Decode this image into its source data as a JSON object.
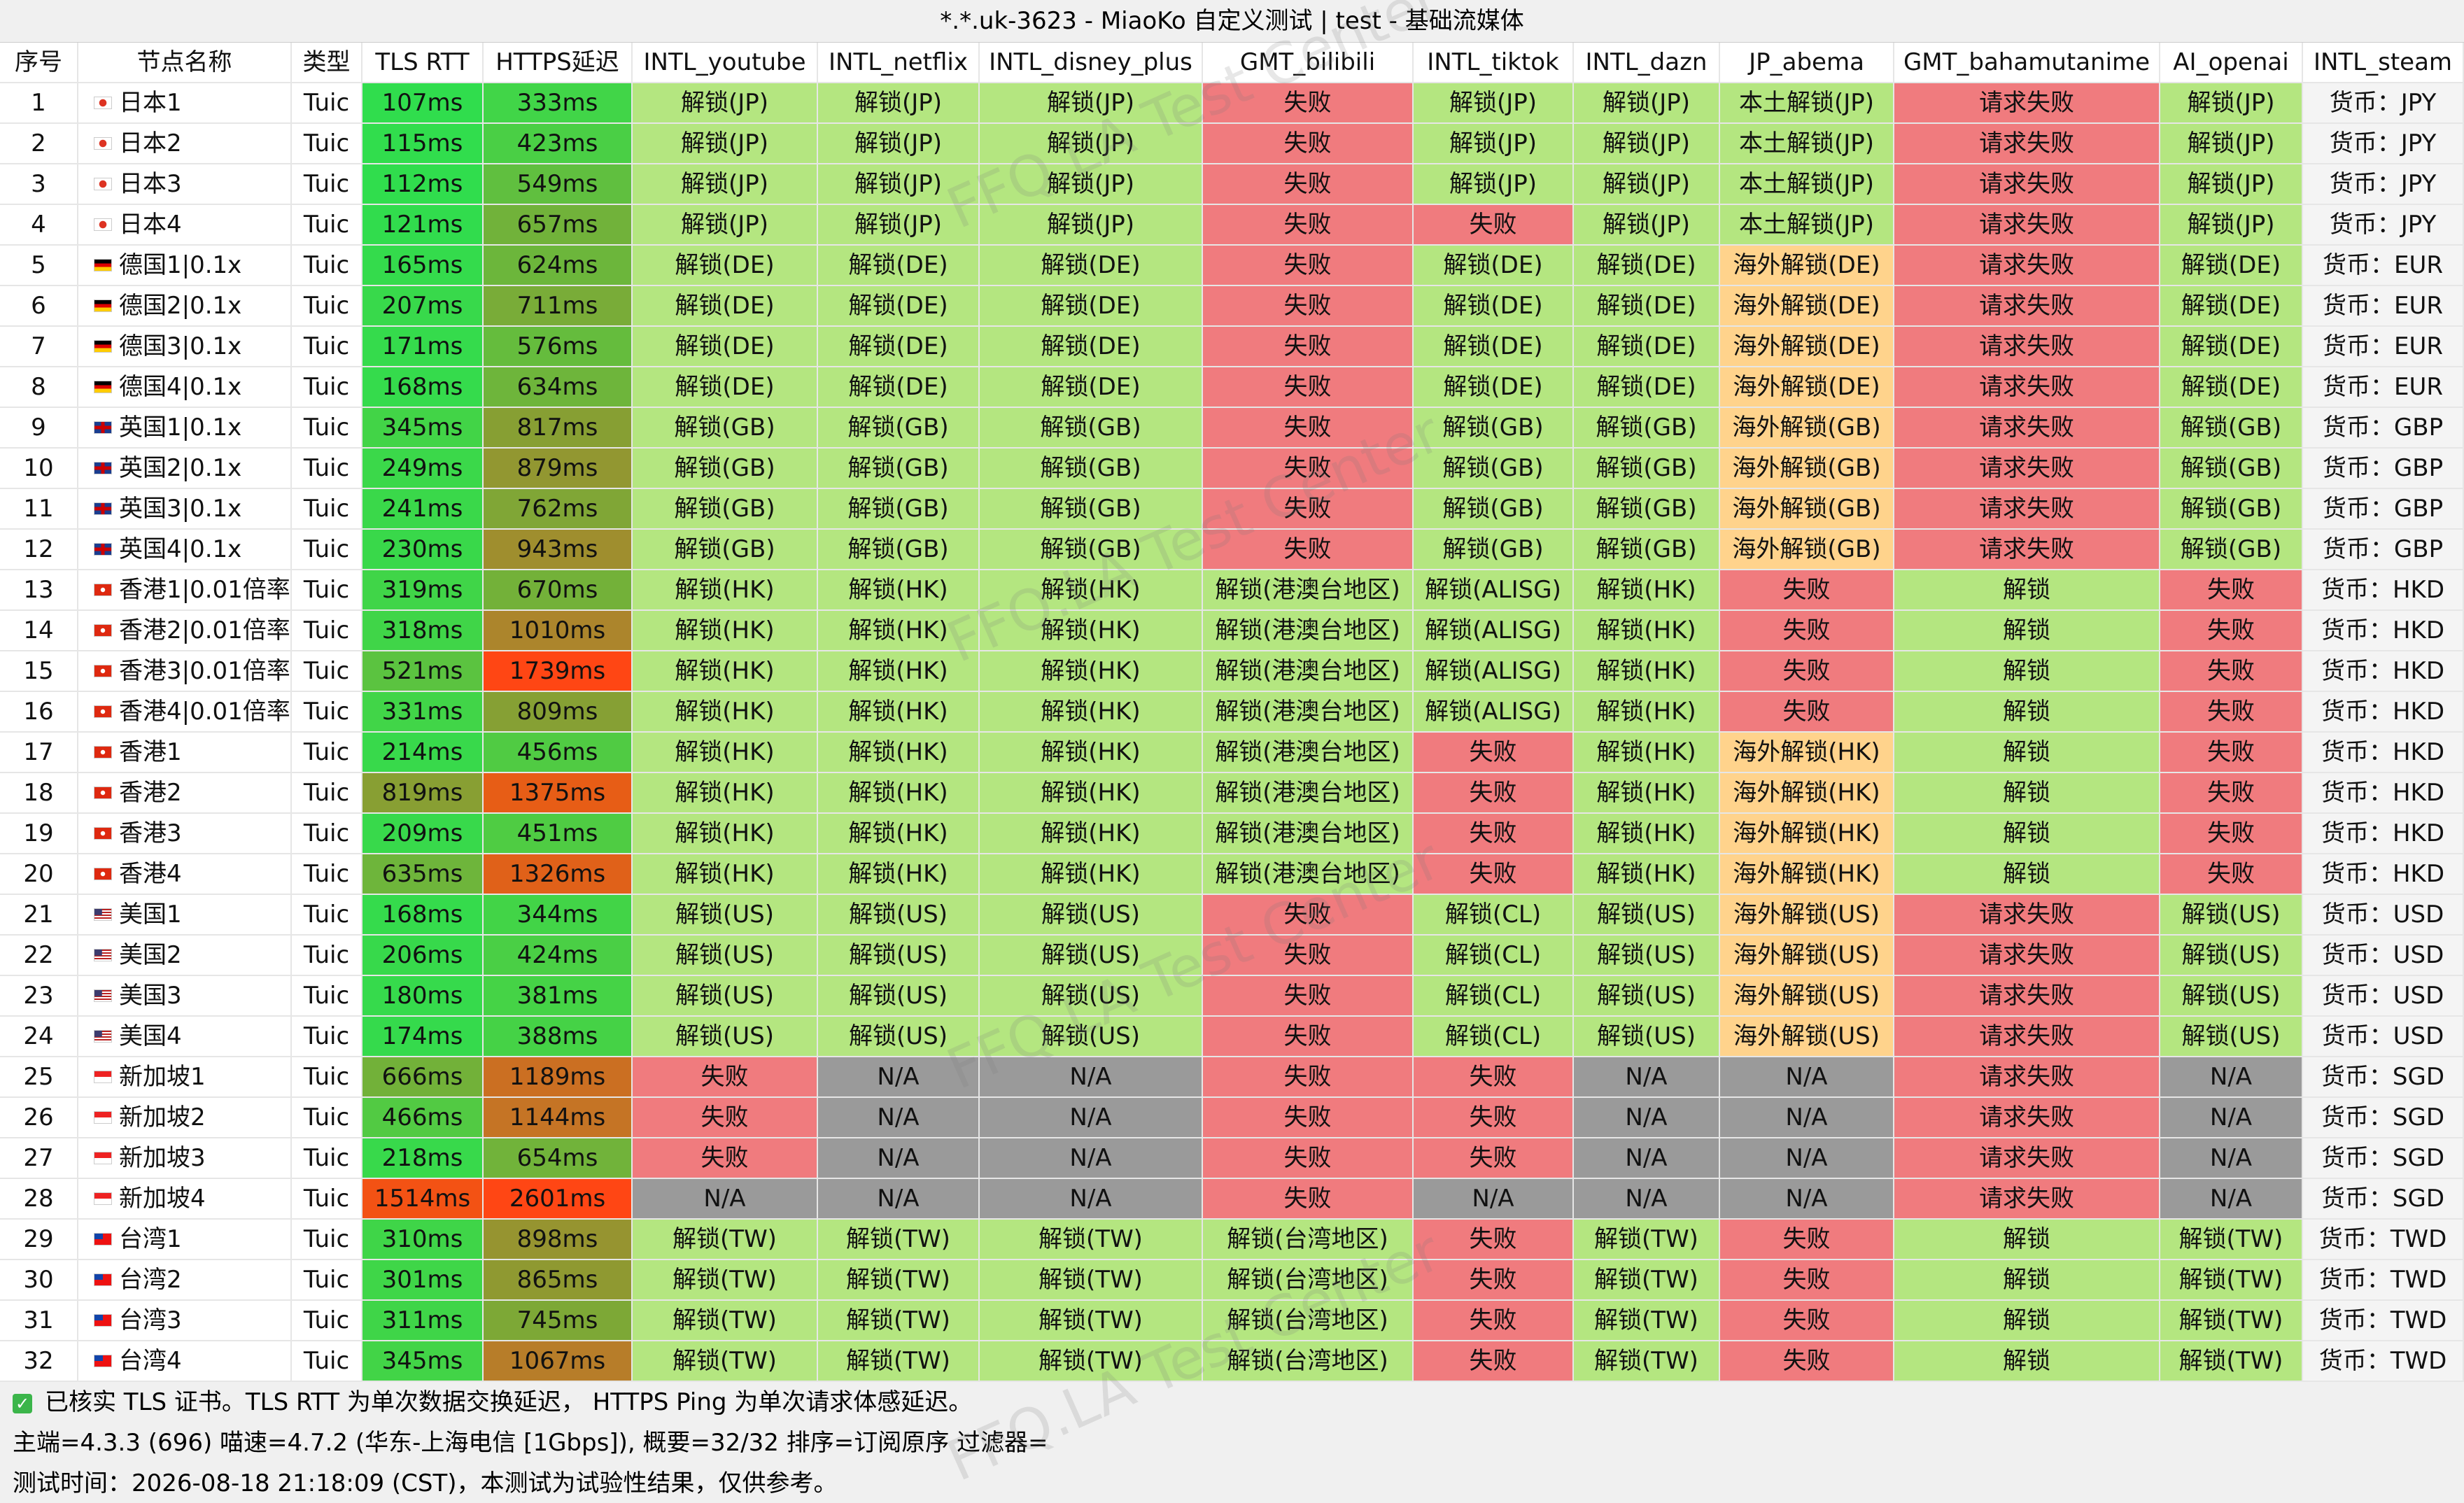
{
  "window_title": "*.*.uk-3623 - MiaoKo 自定义测试 | test - 基础流媒体",
  "watermark": "FFQ.LA Test Center",
  "table": {
    "header": [
      "序号",
      "节点名称",
      "类型",
      "TLS RTT",
      "HTTPS延迟",
      "INTL_youtube",
      "INTL_netflix",
      "INTL_disney_plus",
      "GMT_bilibili",
      "INTL_tiktok",
      "INTL_dazn",
      "JP_abema",
      "GMT_bahamutanime",
      "AI_openai",
      "INTL_steam"
    ],
    "rows": [
      [
        "1",
        "日本1",
        "Tuic",
        "107ms",
        "333ms",
        "解锁(JP)",
        "解锁(JP)",
        "解锁(JP)",
        "失败",
        "解锁(JP)",
        "解锁(JP)",
        "本土解锁(JP)",
        "请求失败",
        "解锁(JP)",
        "货币：JPY"
      ],
      [
        "2",
        "日本2",
        "Tuic",
        "115ms",
        "423ms",
        "解锁(JP)",
        "解锁(JP)",
        "解锁(JP)",
        "失败",
        "解锁(JP)",
        "解锁(JP)",
        "本土解锁(JP)",
        "请求失败",
        "解锁(JP)",
        "货币：JPY"
      ],
      [
        "3",
        "日本3",
        "Tuic",
        "112ms",
        "549ms",
        "解锁(JP)",
        "解锁(JP)",
        "解锁(JP)",
        "失败",
        "解锁(JP)",
        "解锁(JP)",
        "本土解锁(JP)",
        "请求失败",
        "解锁(JP)",
        "货币：JPY"
      ],
      [
        "4",
        "日本4",
        "Tuic",
        "121ms",
        "657ms",
        "解锁(JP)",
        "解锁(JP)",
        "解锁(JP)",
        "失败",
        "失败",
        "解锁(JP)",
        "本土解锁(JP)",
        "请求失败",
        "解锁(JP)",
        "货币：JPY"
      ],
      [
        "5",
        "德国1|0.1x",
        "Tuic",
        "165ms",
        "624ms",
        "解锁(DE)",
        "解锁(DE)",
        "解锁(DE)",
        "失败",
        "解锁(DE)",
        "解锁(DE)",
        "海外解锁(DE)",
        "请求失败",
        "解锁(DE)",
        "货币：EUR"
      ],
      [
        "6",
        "德国2|0.1x",
        "Tuic",
        "207ms",
        "711ms",
        "解锁(DE)",
        "解锁(DE)",
        "解锁(DE)",
        "失败",
        "解锁(DE)",
        "解锁(DE)",
        "海外解锁(DE)",
        "请求失败",
        "解锁(DE)",
        "货币：EUR"
      ],
      [
        "7",
        "德国3|0.1x",
        "Tuic",
        "171ms",
        "576ms",
        "解锁(DE)",
        "解锁(DE)",
        "解锁(DE)",
        "失败",
        "解锁(DE)",
        "解锁(DE)",
        "海外解锁(DE)",
        "请求失败",
        "解锁(DE)",
        "货币：EUR"
      ],
      [
        "8",
        "德国4|0.1x",
        "Tuic",
        "168ms",
        "634ms",
        "解锁(DE)",
        "解锁(DE)",
        "解锁(DE)",
        "失败",
        "解锁(DE)",
        "解锁(DE)",
        "海外解锁(DE)",
        "请求失败",
        "解锁(DE)",
        "货币：EUR"
      ],
      [
        "9",
        "英国1|0.1x",
        "Tuic",
        "345ms",
        "817ms",
        "解锁(GB)",
        "解锁(GB)",
        "解锁(GB)",
        "失败",
        "解锁(GB)",
        "解锁(GB)",
        "海外解锁(GB)",
        "请求失败",
        "解锁(GB)",
        "货币：GBP"
      ],
      [
        "10",
        "英国2|0.1x",
        "Tuic",
        "249ms",
        "879ms",
        "解锁(GB)",
        "解锁(GB)",
        "解锁(GB)",
        "失败",
        "解锁(GB)",
        "解锁(GB)",
        "海外解锁(GB)",
        "请求失败",
        "解锁(GB)",
        "货币：GBP"
      ],
      [
        "11",
        "英国3|0.1x",
        "Tuic",
        "241ms",
        "762ms",
        "解锁(GB)",
        "解锁(GB)",
        "解锁(GB)",
        "失败",
        "解锁(GB)",
        "解锁(GB)",
        "海外解锁(GB)",
        "请求失败",
        "解锁(GB)",
        "货币：GBP"
      ],
      [
        "12",
        "英国4|0.1x",
        "Tuic",
        "230ms",
        "943ms",
        "解锁(GB)",
        "解锁(GB)",
        "解锁(GB)",
        "失败",
        "解锁(GB)",
        "解锁(GB)",
        "海外解锁(GB)",
        "请求失败",
        "解锁(GB)",
        "货币：GBP"
      ],
      [
        "13",
        "香港1|0.01倍率",
        "Tuic",
        "319ms",
        "670ms",
        "解锁(HK)",
        "解锁(HK)",
        "解锁(HK)",
        "解锁(港澳台地区)",
        "解锁(ALISG)",
        "解锁(HK)",
        "失败",
        "解锁",
        "失败",
        "货币：HKD"
      ],
      [
        "14",
        "香港2|0.01倍率",
        "Tuic",
        "318ms",
        "1010ms",
        "解锁(HK)",
        "解锁(HK)",
        "解锁(HK)",
        "解锁(港澳台地区)",
        "解锁(ALISG)",
        "解锁(HK)",
        "失败",
        "解锁",
        "失败",
        "货币：HKD"
      ],
      [
        "15",
        "香港3|0.01倍率",
        "Tuic",
        "521ms",
        "1739ms",
        "解锁(HK)",
        "解锁(HK)",
        "解锁(HK)",
        "解锁(港澳台地区)",
        "解锁(ALISG)",
        "解锁(HK)",
        "失败",
        "解锁",
        "失败",
        "货币：HKD"
      ],
      [
        "16",
        "香港4|0.01倍率",
        "Tuic",
        "331ms",
        "809ms",
        "解锁(HK)",
        "解锁(HK)",
        "解锁(HK)",
        "解锁(港澳台地区)",
        "解锁(ALISG)",
        "解锁(HK)",
        "失败",
        "解锁",
        "失败",
        "货币：HKD"
      ],
      [
        "17",
        "香港1",
        "Tuic",
        "214ms",
        "456ms",
        "解锁(HK)",
        "解锁(HK)",
        "解锁(HK)",
        "解锁(港澳台地区)",
        "失败",
        "解锁(HK)",
        "海外解锁(HK)",
        "解锁",
        "失败",
        "货币：HKD"
      ],
      [
        "18",
        "香港2",
        "Tuic",
        "819ms",
        "1375ms",
        "解锁(HK)",
        "解锁(HK)",
        "解锁(HK)",
        "解锁(港澳台地区)",
        "失败",
        "解锁(HK)",
        "海外解锁(HK)",
        "解锁",
        "失败",
        "货币：HKD"
      ],
      [
        "19",
        "香港3",
        "Tuic",
        "209ms",
        "451ms",
        "解锁(HK)",
        "解锁(HK)",
        "解锁(HK)",
        "解锁(港澳台地区)",
        "失败",
        "解锁(HK)",
        "海外解锁(HK)",
        "解锁",
        "失败",
        "货币：HKD"
      ],
      [
        "20",
        "香港4",
        "Tuic",
        "635ms",
        "1326ms",
        "解锁(HK)",
        "解锁(HK)",
        "解锁(HK)",
        "解锁(港澳台地区)",
        "失败",
        "解锁(HK)",
        "海外解锁(HK)",
        "解锁",
        "失败",
        "货币：HKD"
      ],
      [
        "21",
        "美国1",
        "Tuic",
        "168ms",
        "344ms",
        "解锁(US)",
        "解锁(US)",
        "解锁(US)",
        "失败",
        "解锁(CL)",
        "解锁(US)",
        "海外解锁(US)",
        "请求失败",
        "解锁(US)",
        "货币：USD"
      ],
      [
        "22",
        "美国2",
        "Tuic",
        "206ms",
        "424ms",
        "解锁(US)",
        "解锁(US)",
        "解锁(US)",
        "失败",
        "解锁(CL)",
        "解锁(US)",
        "海外解锁(US)",
        "请求失败",
        "解锁(US)",
        "货币：USD"
      ],
      [
        "23",
        "美国3",
        "Tuic",
        "180ms",
        "381ms",
        "解锁(US)",
        "解锁(US)",
        "解锁(US)",
        "失败",
        "解锁(CL)",
        "解锁(US)",
        "海外解锁(US)",
        "请求失败",
        "解锁(US)",
        "货币：USD"
      ],
      [
        "24",
        "美国4",
        "Tuic",
        "174ms",
        "388ms",
        "解锁(US)",
        "解锁(US)",
        "解锁(US)",
        "失败",
        "解锁(CL)",
        "解锁(US)",
        "海外解锁(US)",
        "请求失败",
        "解锁(US)",
        "货币：USD"
      ],
      [
        "25",
        "新加坡1",
        "Tuic",
        "666ms",
        "1189ms",
        "失败",
        "N/A",
        "N/A",
        "失败",
        "失败",
        "N/A",
        "N/A",
        "请求失败",
        "N/A",
        "货币：SGD"
      ],
      [
        "26",
        "新加坡2",
        "Tuic",
        "466ms",
        "1144ms",
        "失败",
        "N/A",
        "N/A",
        "失败",
        "失败",
        "N/A",
        "N/A",
        "请求失败",
        "N/A",
        "货币：SGD"
      ],
      [
        "27",
        "新加坡3",
        "Tuic",
        "218ms",
        "654ms",
        "失败",
        "N/A",
        "N/A",
        "失败",
        "失败",
        "N/A",
        "N/A",
        "请求失败",
        "N/A",
        "货币：SGD"
      ],
      [
        "28",
        "新加坡4",
        "Tuic",
        "1514ms",
        "2601ms",
        "N/A",
        "N/A",
        "N/A",
        "失败",
        "N/A",
        "N/A",
        "N/A",
        "请求失败",
        "N/A",
        "货币：SGD"
      ],
      [
        "29",
        "台湾1",
        "Tuic",
        "310ms",
        "898ms",
        "解锁(TW)",
        "解锁(TW)",
        "解锁(TW)",
        "解锁(台湾地区)",
        "失败",
        "解锁(TW)",
        "失败",
        "解锁",
        "解锁(TW)",
        "货币：TWD"
      ],
      [
        "30",
        "台湾2",
        "Tuic",
        "301ms",
        "865ms",
        "解锁(TW)",
        "解锁(TW)",
        "解锁(TW)",
        "解锁(台湾地区)",
        "失败",
        "解锁(TW)",
        "失败",
        "解锁",
        "解锁(TW)",
        "货币：TWD"
      ],
      [
        "31",
        "台湾3",
        "Tuic",
        "311ms",
        "745ms",
        "解锁(TW)",
        "解锁(TW)",
        "解锁(TW)",
        "解锁(台湾地区)",
        "失败",
        "解锁(TW)",
        "失败",
        "解锁",
        "解锁(TW)",
        "货币：TWD"
      ],
      [
        "32",
        "台湾4",
        "Tuic",
        "345ms",
        "1067ms",
        "解锁(TW)",
        "解锁(TW)",
        "解锁(TW)",
        "解锁(台湾地区)",
        "失败",
        "解锁(TW)",
        "失败",
        "解锁",
        "解锁(TW)",
        "货币：TWD"
      ]
    ]
  },
  "footer": [
    "已核实 TLS 证书。TLS RTT 为单次数据交换延迟， HTTPS Ping 为单次请求体感延迟。",
    "主端=4.3.3 (696) 喵速=4.7.2 (华东-上海电信 [1Gbps]), 概要=32/32 排序=订阅原序 过滤器=",
    "测试时间：2026-08-18 21:18:09 (CST)，本测试为试验性结果，仅供参考。"
  ]
}
